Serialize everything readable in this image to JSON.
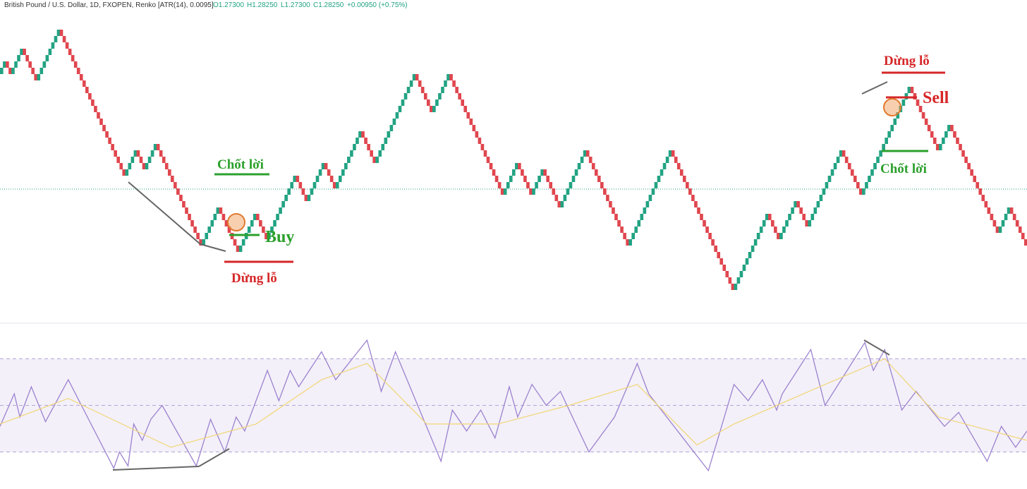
{
  "chart_data": [
    {
      "type": "renko",
      "title": "British Pound / U.S. Dollar, 1D, FXOPEN, Renko [ATR(14), 0.0095]",
      "ohlc": [
        "O1.27300",
        "H1.28250",
        "L1.27300",
        "C1.28250",
        "+0.00950 (+0.75%)"
      ],
      "values": [
        35,
        37,
        35,
        39,
        34,
        42,
        19,
        23,
        20,
        24,
        8,
        14,
        7,
        13,
        9,
        19,
        15,
        21,
        17,
        26,
        21,
        35,
        29,
        35,
        16,
        21,
        16,
        20,
        14,
        23,
        8,
        23,
        1,
        13,
        9,
        15,
        11,
        23,
        16,
        33,
        23,
        27,
        10,
        14,
        8
      ],
      "ylim": [
        0,
        45
      ],
      "up_color": "#22a383",
      "down_color": "#e0464e",
      "annotations": {
        "take_profit_1": "Chốt lời",
        "buy": "Buy",
        "stop_loss_1": "Dừng lỗ",
        "stop_loss_2": "Dừng lỗ",
        "sell": "Sell",
        "take_profit_2": "Chốt lời"
      }
    },
    {
      "type": "line",
      "xlim": [
        0,
        361
      ],
      "ylim": [
        15,
        85
      ],
      "levels": [
        70,
        50,
        30
      ],
      "series": [
        {
          "name": "RSI",
          "color": "#9c82cf",
          "x": [
            0,
            5,
            7,
            11,
            16,
            24,
            40,
            42,
            45,
            47,
            50,
            53,
            57,
            69,
            74,
            79,
            83,
            86,
            94,
            98,
            102,
            105,
            113,
            118,
            129,
            134,
            139,
            155,
            159,
            164,
            169,
            174,
            179,
            182,
            187,
            192,
            197,
            207,
            216,
            224,
            228,
            249,
            258,
            263,
            268,
            273,
            275,
            285,
            290,
            304,
            307,
            311,
            317,
            322,
            332,
            337,
            347,
            352,
            357,
            361
          ],
          "values": [
            41,
            55,
            45,
            58,
            43,
            61,
            23,
            30,
            24,
            42,
            35,
            44,
            50,
            24,
            44,
            30,
            45,
            39,
            65,
            52,
            65,
            58,
            73,
            61,
            78,
            56,
            73,
            26,
            48,
            39,
            48,
            36,
            58,
            45,
            59,
            50,
            56,
            30,
            45,
            68,
            55,
            22,
            59,
            52,
            61,
            48,
            55,
            74,
            50,
            77,
            65,
            74,
            48,
            56,
            41,
            47,
            26,
            41,
            32,
            39
          ]
        },
        {
          "name": "RSI-based MA",
          "color": "#f2d675",
          "x": [
            0,
            24,
            60,
            90,
            113,
            129,
            150,
            175,
            200,
            224,
            245,
            258,
            290,
            311,
            330,
            361
          ],
          "values": [
            42,
            53,
            32,
            42,
            61,
            68,
            42,
            42,
            50,
            59,
            33,
            42,
            59,
            70,
            45,
            35
          ]
        }
      ]
    }
  ]
}
